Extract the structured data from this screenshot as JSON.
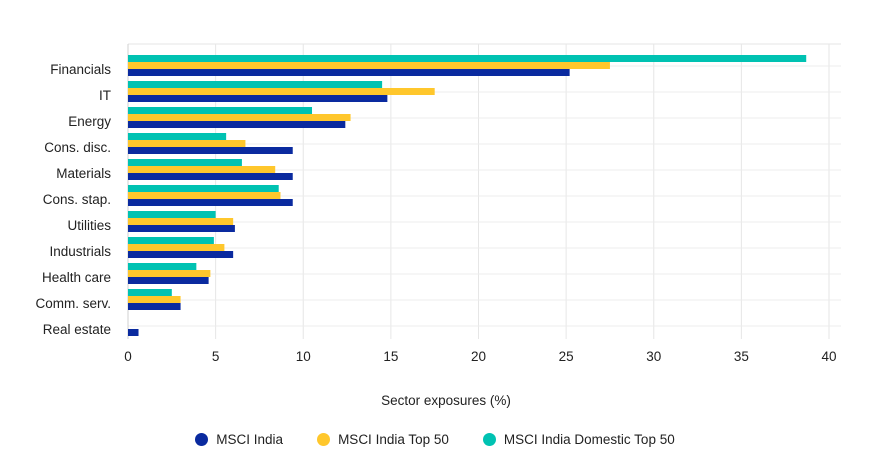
{
  "chart_data": {
    "type": "bar",
    "orientation": "horizontal",
    "categories": [
      "Financials",
      "IT",
      "Energy",
      "Cons. disc.",
      "Materials",
      "Cons. stap.",
      "Utilities",
      "Industrials",
      "Health care",
      "Comm. serv.",
      "Real estate"
    ],
    "series": [
      {
        "name": "MSCI India Domestic Top 50",
        "color": "#00c2b2",
        "values": [
          38.7,
          14.5,
          10.5,
          5.6,
          6.5,
          8.6,
          5.0,
          4.9,
          3.9,
          2.5,
          0.0
        ]
      },
      {
        "name": "MSCI India Top 50",
        "color": "#ffc72c",
        "values": [
          27.5,
          17.5,
          12.7,
          6.7,
          8.4,
          8.7,
          6.0,
          5.5,
          4.7,
          3.0,
          0.0
        ]
      },
      {
        "name": "MSCI India",
        "color": "#0a2a9f",
        "values": [
          25.2,
          14.8,
          12.4,
          9.4,
          9.4,
          9.4,
          6.1,
          6.0,
          4.6,
          3.0,
          0.6
        ]
      }
    ],
    "legend_order": [
      2,
      1,
      0
    ],
    "xlabel": "Sector exposures (%)",
    "ylabel": "",
    "xlim": [
      0,
      40
    ],
    "xticks": [
      0,
      5,
      10,
      15,
      20,
      25,
      30,
      35,
      40
    ],
    "grid": true,
    "legend_position": "bottom"
  }
}
